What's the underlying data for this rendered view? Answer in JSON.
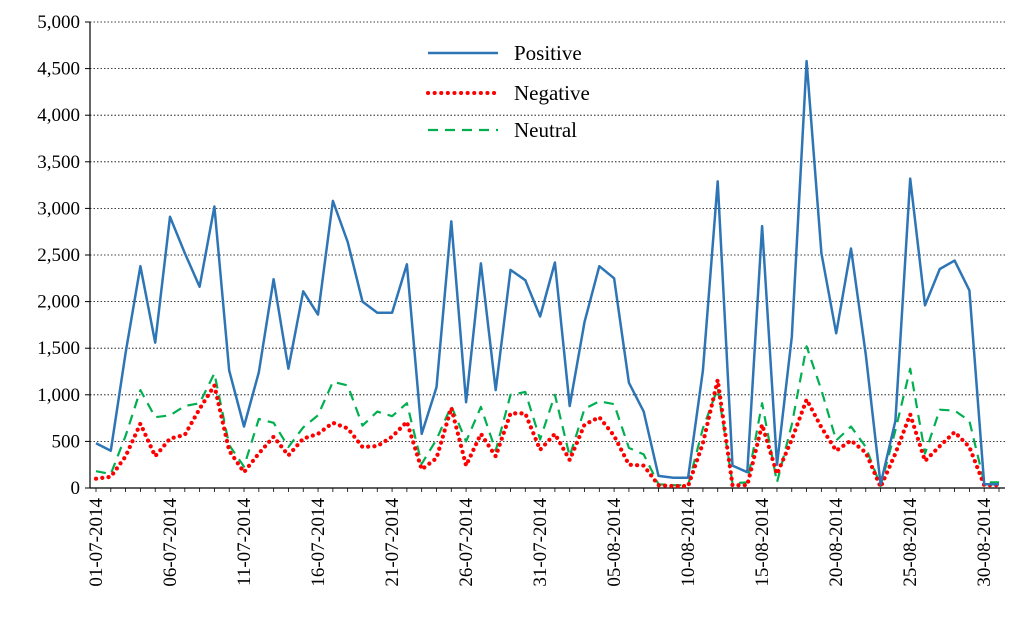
{
  "chart_data": {
    "type": "line",
    "title": "",
    "xlabel": "",
    "ylabel": "",
    "ylim": [
      0,
      5000
    ],
    "yticks": [
      "0",
      "500",
      "1,000",
      "1,500",
      "2,000",
      "2,500",
      "3,000",
      "3,500",
      "4,000",
      "4,500",
      "5,000"
    ],
    "ytick_values": [
      0,
      500,
      1000,
      1500,
      2000,
      2500,
      3000,
      3500,
      4000,
      4500,
      5000
    ],
    "grid": "horizontal dotted",
    "legend_position": "top-center",
    "x": [
      "01-07-2014",
      "02-07-2014",
      "03-07-2014",
      "04-07-2014",
      "05-07-2014",
      "06-07-2014",
      "07-07-2014",
      "08-07-2014",
      "09-07-2014",
      "10-07-2014",
      "11-07-2014",
      "12-07-2014",
      "13-07-2014",
      "14-07-2014",
      "15-07-2014",
      "16-07-2014",
      "17-07-2014",
      "18-07-2014",
      "19-07-2014",
      "20-07-2014",
      "21-07-2014",
      "22-07-2014",
      "23-07-2014",
      "24-07-2014",
      "25-07-2014",
      "26-07-2014",
      "27-07-2014",
      "28-07-2014",
      "29-07-2014",
      "30-07-2014",
      "31-07-2014",
      "01-08-2014",
      "02-08-2014",
      "03-08-2014",
      "04-08-2014",
      "05-08-2014",
      "06-08-2014",
      "07-08-2014",
      "08-08-2014",
      "09-08-2014",
      "10-08-2014",
      "11-08-2014",
      "12-08-2014",
      "13-08-2014",
      "14-08-2014",
      "15-08-2014",
      "16-08-2014",
      "17-08-2014",
      "18-08-2014",
      "19-08-2014",
      "20-08-2014",
      "21-08-2014",
      "22-08-2014",
      "23-08-2014",
      "24-08-2014",
      "25-08-2014",
      "26-08-2014",
      "27-08-2014",
      "28-08-2014",
      "29-08-2014",
      "30-08-2014",
      "31-08-2014"
    ],
    "xtick_labels": [
      "01-07-2014",
      "06-07-2014",
      "11-07-2014",
      "16-07-2014",
      "21-07-2014",
      "26-07-2014",
      "31-07-2014",
      "05-08-2014",
      "10-08-2014",
      "15-08-2014",
      "20-08-2014",
      "25-08-2014",
      "30-08-2014"
    ],
    "xtick_step": 5,
    "series": [
      {
        "name": "Positive",
        "color": "#2e75b6",
        "style": "solid",
        "values": [
          480,
          400,
          1450,
          2380,
          1560,
          2910,
          2520,
          2160,
          3020,
          1260,
          660,
          1240,
          2240,
          1280,
          2110,
          1860,
          3080,
          2640,
          2000,
          1880,
          1880,
          2400,
          580,
          1080,
          2860,
          920,
          2410,
          1050,
          2340,
          2230,
          1840,
          2420,
          880,
          1780,
          2380,
          2250,
          1130,
          820,
          130,
          110,
          110,
          1260,
          3290,
          240,
          170,
          2810,
          250,
          1620,
          4580,
          2520,
          1660,
          2570,
          1430,
          40,
          720,
          3320,
          1960,
          2350,
          2440,
          2120,
          40,
          40
        ]
      },
      {
        "name": "Negative",
        "color": "#ff0000",
        "style": "dotted",
        "values": [
          100,
          120,
          340,
          690,
          340,
          530,
          570,
          850,
          1100,
          400,
          170,
          370,
          550,
          350,
          530,
          580,
          700,
          640,
          440,
          450,
          550,
          710,
          200,
          320,
          860,
          240,
          580,
          340,
          800,
          800,
          410,
          580,
          300,
          680,
          760,
          560,
          250,
          240,
          30,
          20,
          20,
          480,
          1160,
          30,
          30,
          680,
          150,
          520,
          950,
          650,
          400,
          510,
          380,
          10,
          370,
          790,
          290,
          450,
          600,
          440,
          30,
          30
        ]
      },
      {
        "name": "Neutral",
        "color": "#00b050",
        "style": "dashed",
        "values": [
          180,
          150,
          560,
          1050,
          760,
          780,
          880,
          910,
          1230,
          460,
          230,
          740,
          700,
          440,
          650,
          780,
          1140,
          1100,
          670,
          820,
          770,
          910,
          260,
          520,
          880,
          500,
          870,
          400,
          1000,
          1030,
          520,
          1000,
          340,
          850,
          930,
          900,
          430,
          360,
          40,
          30,
          30,
          640,
          1070,
          50,
          60,
          910,
          60,
          680,
          1520,
          1050,
          510,
          660,
          440,
          20,
          620,
          1280,
          370,
          840,
          830,
          720,
          60,
          60
        ]
      }
    ]
  }
}
